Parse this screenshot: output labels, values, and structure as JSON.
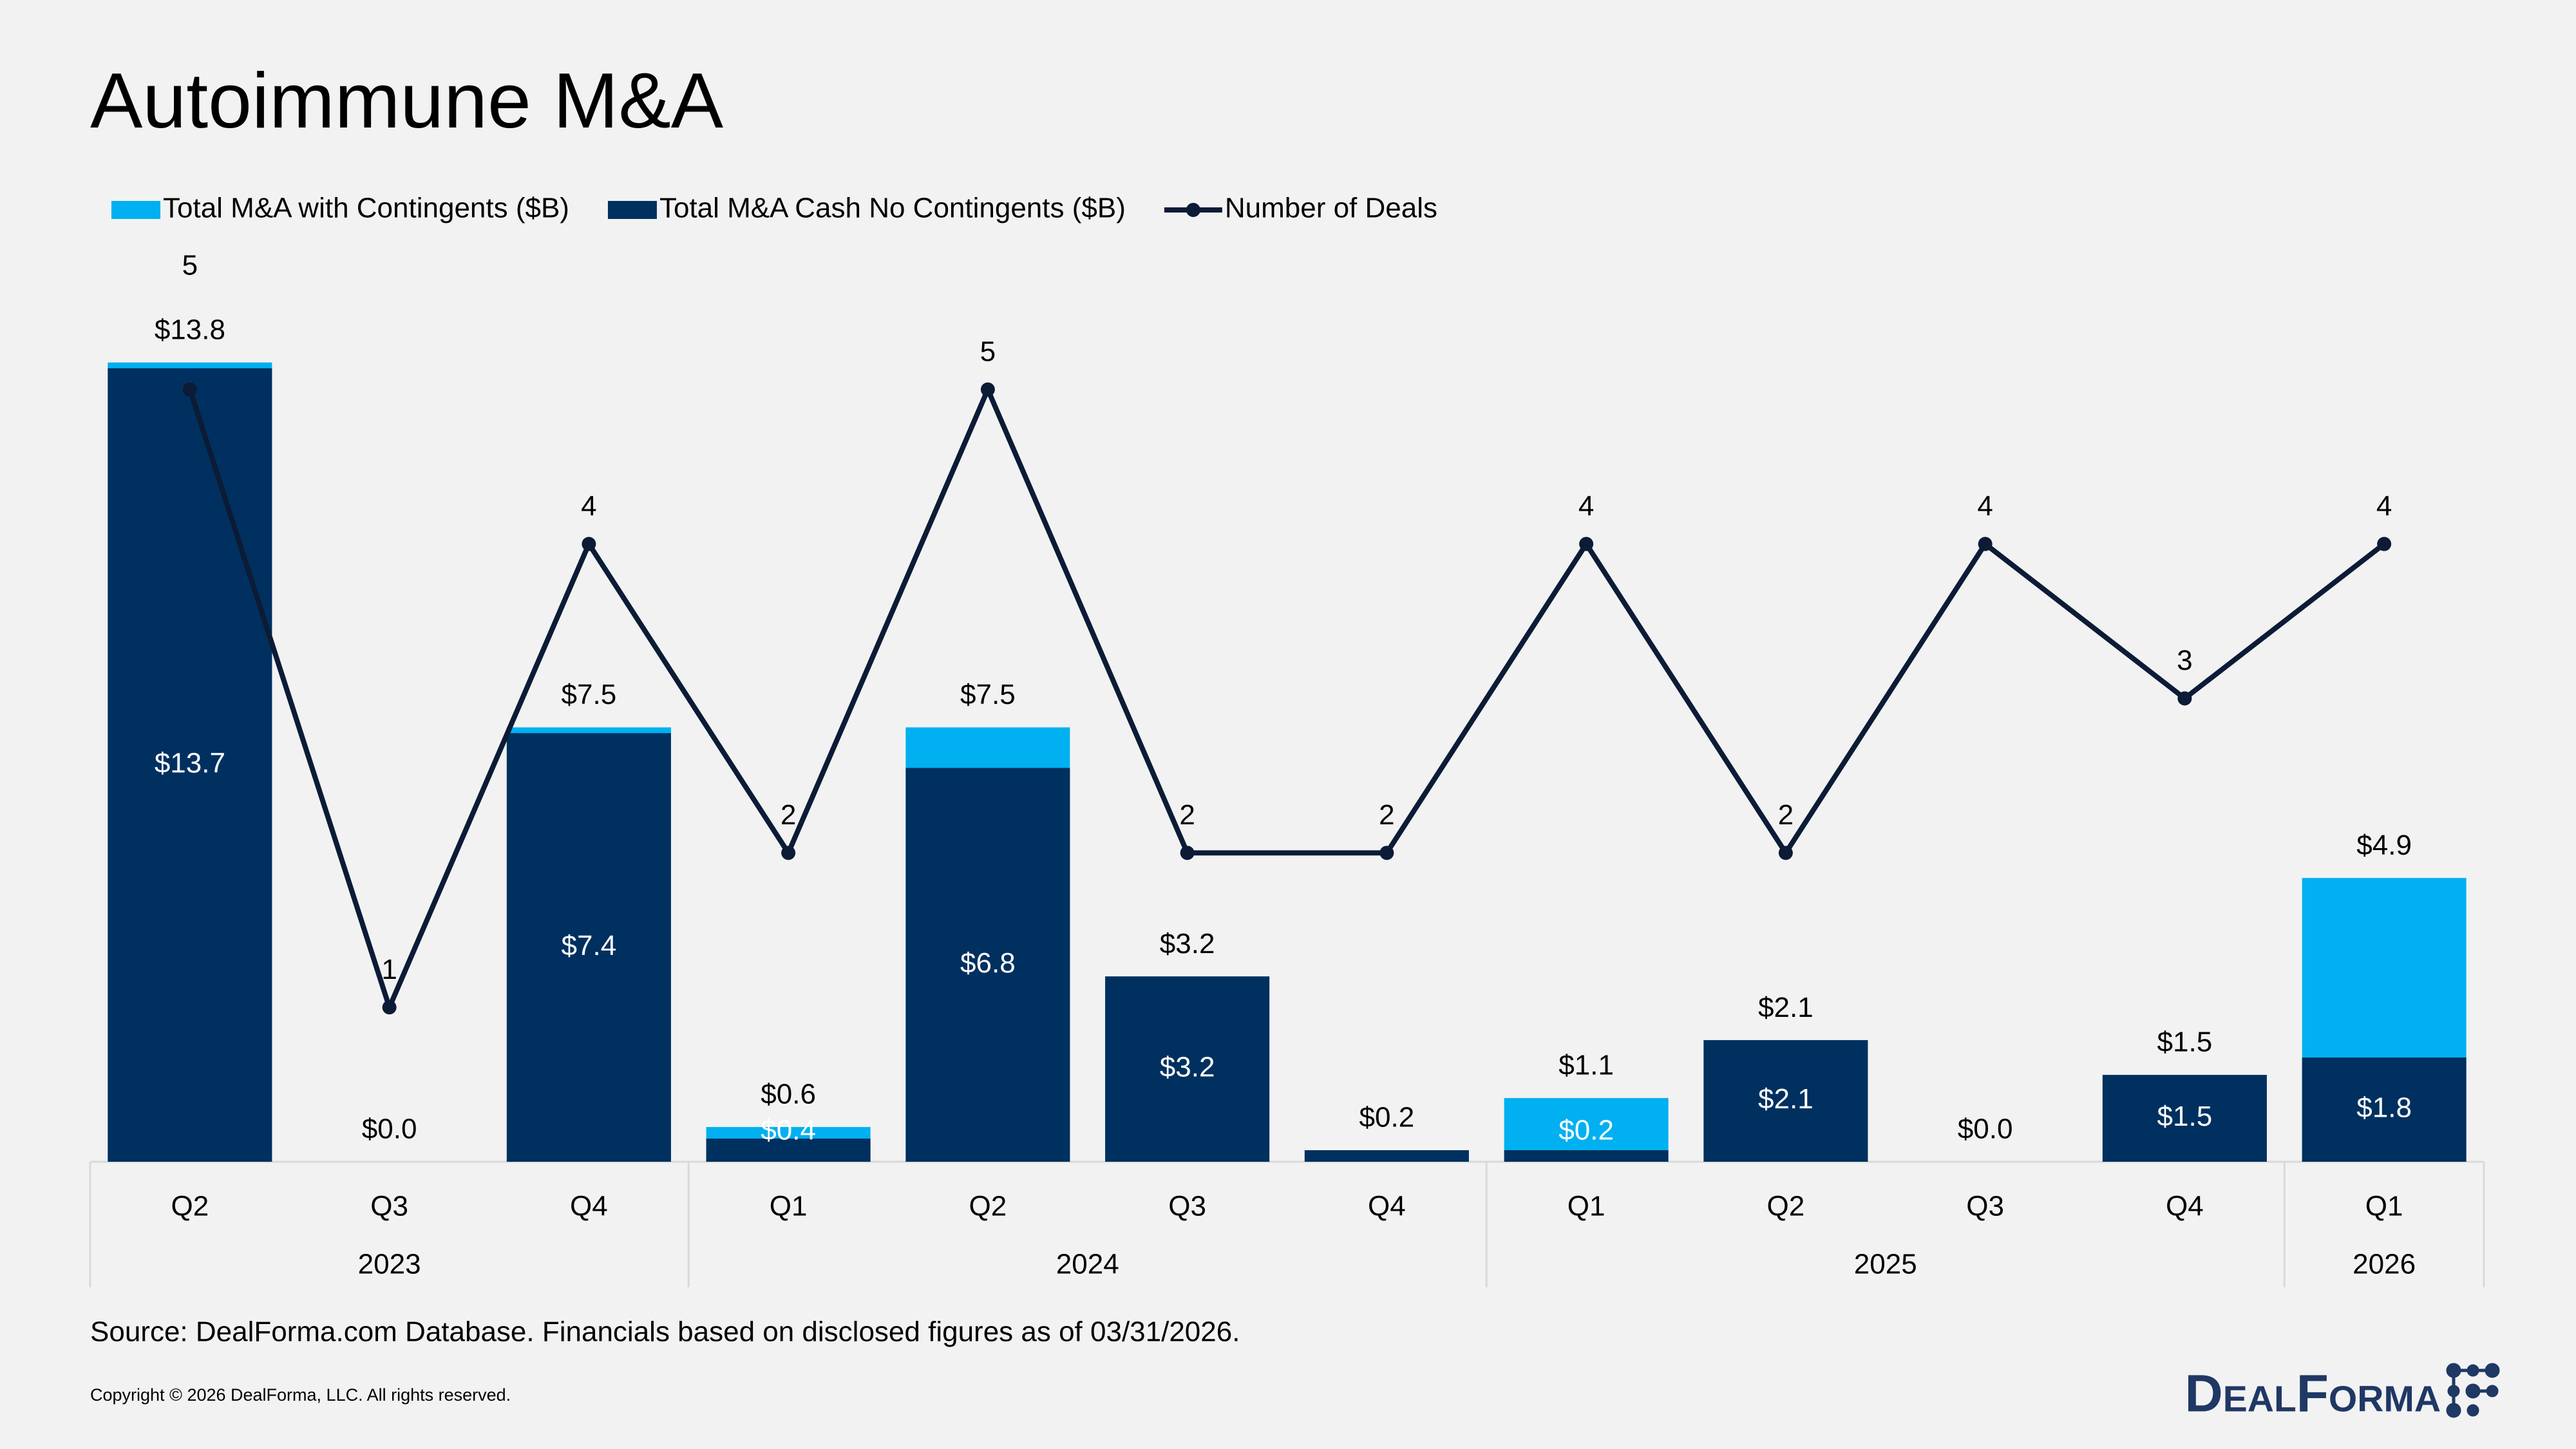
{
  "chart_data": {
    "type": "bar",
    "title": "Autoimmune M&A",
    "categories": [
      "Q2",
      "Q3",
      "Q4",
      "Q1",
      "Q2",
      "Q3",
      "Q4",
      "Q1",
      "Q2",
      "Q3",
      "Q4",
      "Q1"
    ],
    "groups": [
      {
        "label": "2023",
        "size": 3
      },
      {
        "label": "2024",
        "size": 4
      },
      {
        "label": "2025",
        "size": 4
      },
      {
        "label": "2026",
        "size": 1
      }
    ],
    "series": [
      {
        "name": "Total M&A with Contingents ($B)",
        "color": "#00b0f0",
        "values": [
          13.8,
          0.0,
          7.5,
          0.6,
          7.5,
          3.2,
          0.2,
          1.1,
          2.1,
          0.0,
          1.5,
          4.9
        ],
        "value_labels": [
          "$13.8",
          "$0.0",
          "$7.5",
          "$0.6",
          "$7.5",
          "$3.2",
          "$0.2",
          "$1.1",
          "$2.1",
          "$0.0",
          "$1.5",
          "$4.9"
        ]
      },
      {
        "name": "Total M&A Cash No Contingents ($B)",
        "color": "#00305f",
        "values": [
          13.7,
          0.0,
          7.4,
          0.4,
          6.8,
          3.2,
          0.2,
          0.2,
          2.1,
          0.0,
          1.5,
          1.8
        ],
        "value_labels": [
          "$13.7",
          null,
          "$7.4",
          "$0.4",
          "$6.8",
          "$3.2",
          null,
          "$0.2",
          "$2.1",
          null,
          "$1.5",
          "$1.8"
        ]
      },
      {
        "name": "Number of Deals",
        "type": "line",
        "axis": "y2",
        "color": "#0c1b36",
        "values": [
          5,
          1,
          4,
          2,
          5,
          2,
          2,
          4,
          2,
          4,
          3,
          4
        ]
      }
    ],
    "ylim": [
      0,
      16
    ],
    "y2lim": [
      0,
      6
    ],
    "legend": "top-left"
  },
  "footer": {
    "source": "Source: DealForma.com Database. Financials based on disclosed figures as of 03/31/2026.",
    "copyright": "Copyright © 2026 DealForma, LLC. All rights reserved.",
    "logo": "DealForma"
  }
}
